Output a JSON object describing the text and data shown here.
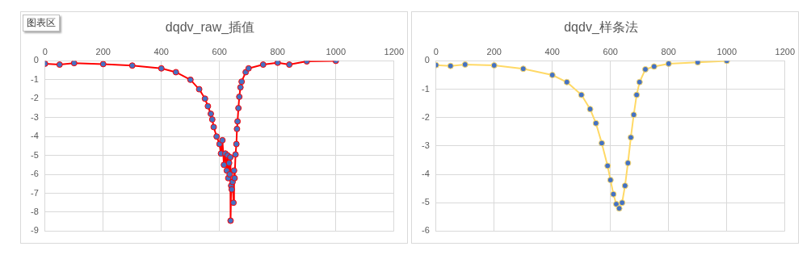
{
  "chart_data": [
    {
      "type": "line",
      "title": "dqdv_raw_插值",
      "annotations": [
        "图表区"
      ],
      "xlim": [
        0,
        1200
      ],
      "xticks": [
        0,
        200,
        400,
        600,
        800,
        1000,
        1200
      ],
      "ylim": [
        -9,
        0
      ],
      "yticks": [
        -9,
        -8,
        -7,
        -6,
        -5,
        -4,
        -3,
        -2,
        -1,
        0
      ],
      "grid": true,
      "marker": "circle",
      "legend": false,
      "series": [
        {
          "color": "#ff0000",
          "x": [
            0,
            50,
            100,
            200,
            300,
            400,
            450,
            500,
            530,
            550,
            560,
            570,
            575,
            580,
            590,
            600,
            605,
            610,
            615,
            620,
            625,
            628,
            630,
            633,
            635,
            637,
            638,
            640,
            642,
            645,
            648,
            650,
            652,
            655,
            658,
            660,
            662,
            665,
            668,
            672,
            676,
            690,
            700,
            750,
            800,
            840,
            900,
            1000
          ],
          "values": [
            -0.15,
            -0.2,
            -0.12,
            -0.17,
            -0.25,
            -0.4,
            -0.6,
            -1.0,
            -1.5,
            -2.0,
            -2.4,
            -2.8,
            -3.1,
            -3.5,
            -4.0,
            -4.4,
            -4.9,
            -4.2,
            -5.5,
            -4.9,
            -5.8,
            -5.0,
            -6.2,
            -5.4,
            -6.0,
            -5.1,
            -8.45,
            -6.6,
            -6.8,
            -6.4,
            -7.5,
            -5.8,
            -6.2,
            -4.95,
            -4.4,
            -3.6,
            -3.2,
            -2.5,
            -1.9,
            -1.4,
            -1.1,
            -0.6,
            -0.4,
            -0.2,
            -0.1,
            -0.2,
            -0.03,
            0
          ]
        }
      ]
    },
    {
      "type": "line",
      "title": "dqdv_样条法",
      "xlim": [
        0,
        1200
      ],
      "xticks": [
        0,
        200,
        400,
        600,
        800,
        1000,
        1200
      ],
      "ylim": [
        -6,
        0
      ],
      "yticks": [
        -6,
        -5,
        -4,
        -3,
        -2,
        -1,
        0
      ],
      "grid": true,
      "marker": "circle",
      "legend": false,
      "series": [
        {
          "color": "#ffd966",
          "x": [
            0,
            50,
            100,
            200,
            300,
            400,
            450,
            500,
            530,
            550,
            570,
            590,
            600,
            610,
            620,
            630,
            640,
            650,
            660,
            670,
            680,
            690,
            700,
            720,
            750,
            800,
            900,
            1000
          ],
          "values": [
            -0.15,
            -0.18,
            -0.13,
            -0.16,
            -0.28,
            -0.5,
            -0.75,
            -1.2,
            -1.7,
            -2.2,
            -2.9,
            -3.7,
            -4.2,
            -4.7,
            -5.05,
            -5.2,
            -5.0,
            -4.4,
            -3.6,
            -2.7,
            -1.9,
            -1.2,
            -0.75,
            -0.3,
            -0.2,
            -0.1,
            -0.05,
            0
          ]
        }
      ]
    }
  ]
}
